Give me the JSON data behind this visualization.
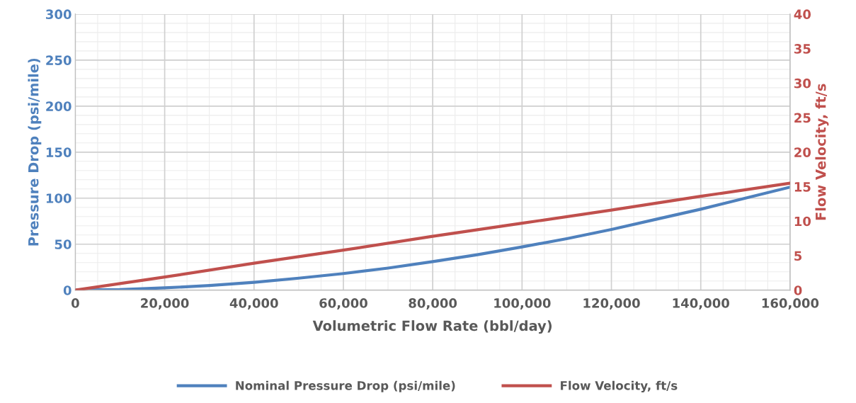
{
  "chart_data": {
    "type": "line",
    "xlabel": "Volumetric Flow Rate (bbl/day)",
    "ylabel": "Pressure Drop (psi/mile)",
    "y2label": "Flow Velocity, ft/s",
    "series": [
      {
        "name": "Nominal Pressure Drop (psi/mile)",
        "color": "#4f81bd",
        "x": [
          0,
          10000,
          20000,
          30000,
          40000,
          50000,
          60000,
          70000,
          80000,
          90000,
          100000,
          110000,
          120000,
          130000,
          140000,
          150000,
          160000
        ],
        "values": [
          0,
          0.6,
          2.5,
          5,
          8.5,
          13,
          18,
          24,
          31,
          38.5,
          47,
          56,
          66,
          77,
          88,
          100,
          112
        ]
      },
      {
        "name": "Flow Velocity, ft/s",
        "color": "#c0504d",
        "axis": "y2",
        "x": [
          0,
          20000,
          40000,
          60000,
          80000,
          100000,
          120000,
          140000,
          160000
        ],
        "values": [
          0,
          1.9,
          3.9,
          5.8,
          7.8,
          9.7,
          11.6,
          13.6,
          15.5
        ]
      }
    ],
    "xlim": [
      0,
      160000
    ],
    "xticks": [
      {
        "value": 0,
        "label": "0"
      },
      {
        "value": 20000,
        "label": "20,000"
      },
      {
        "value": 40000,
        "label": "40,000"
      },
      {
        "value": 60000,
        "label": "60,000"
      },
      {
        "value": 80000,
        "label": "80,000"
      },
      {
        "value": 100000,
        "label": "100,000"
      },
      {
        "value": 120000,
        "label": "120,000"
      },
      {
        "value": 140000,
        "label": "140,000"
      },
      {
        "value": 160000,
        "label": "160,000"
      }
    ],
    "ylim": [
      0,
      300
    ],
    "yticks": [
      0,
      50,
      100,
      150,
      200,
      250,
      300
    ],
    "y2lim": [
      0,
      40
    ],
    "y2ticks": [
      0,
      5,
      10,
      15,
      20,
      25,
      30,
      35,
      40
    ],
    "grid": true,
    "legend": "bottom",
    "marker": "none",
    "line_style": "solid"
  }
}
